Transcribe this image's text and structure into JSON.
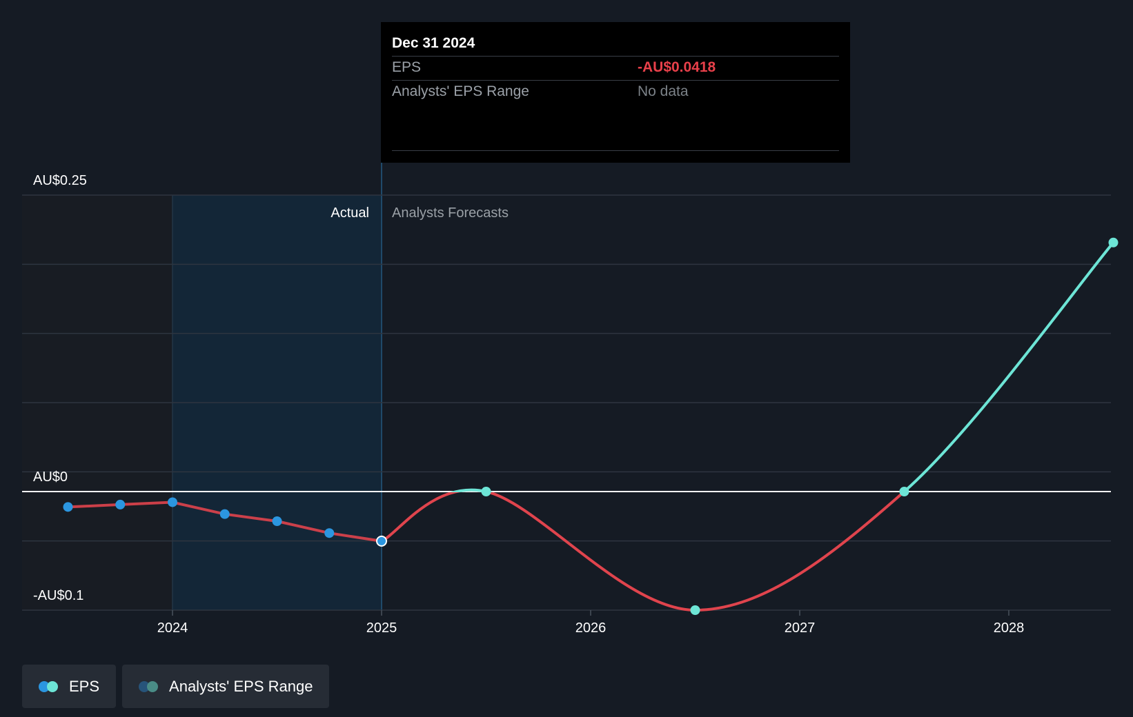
{
  "chart_data": {
    "type": "line",
    "y_axis": {
      "tick_labels": [
        "AU$0.25",
        "AU$0",
        "-AU$0.1"
      ],
      "tick_values": [
        0.25,
        0,
        -0.1
      ],
      "ylim": [
        -0.1,
        0.25
      ],
      "grid": true
    },
    "x_axis": {
      "tick_labels": [
        "2024",
        "2025",
        "2026",
        "2027",
        "2028"
      ],
      "tick_values": [
        2024,
        2025,
        2026,
        2027,
        2028
      ],
      "xlim": [
        2023.3,
        2028.5
      ]
    },
    "region_labels": {
      "actual": "Actual",
      "forecast": "Analysts Forecasts"
    },
    "divider_x": 2025,
    "series": [
      {
        "name": "EPS",
        "segment": "actual",
        "points": [
          [
            2023.5,
            -0.013
          ],
          [
            2023.75,
            -0.011
          ],
          [
            2024.0,
            -0.009
          ],
          [
            2024.25,
            -0.019
          ],
          [
            2024.5,
            -0.025
          ],
          [
            2024.75,
            -0.035
          ],
          [
            2025.0,
            -0.0418
          ]
        ]
      },
      {
        "name": "EPS",
        "segment": "forecast",
        "points": [
          [
            2025.0,
            -0.0418
          ],
          [
            2025.5,
            0.0
          ],
          [
            2026.5,
            -0.1
          ],
          [
            2027.5,
            0.0
          ],
          [
            2028.5,
            0.21
          ]
        ]
      }
    ],
    "tooltip": {
      "date": "Dec 31 2024",
      "rows": [
        {
          "label": "EPS",
          "value": "-AU$0.0418"
        },
        {
          "label": "Analysts' EPS Range",
          "value": "No data"
        }
      ]
    },
    "legend": [
      "EPS",
      "Analysts' EPS Range"
    ]
  },
  "colors": {
    "background": "#151b24",
    "actual_band": "#13283b",
    "past_band": "#181c23",
    "eps_negative": "#e0444d",
    "eps_positive": "#6de5d6",
    "actual_dot": "#2b96e0",
    "range_dot_dark": "#27547a",
    "range_dot_light": "#4a8c86",
    "grid": "#2e3540",
    "zero_line": "#ffffff"
  }
}
